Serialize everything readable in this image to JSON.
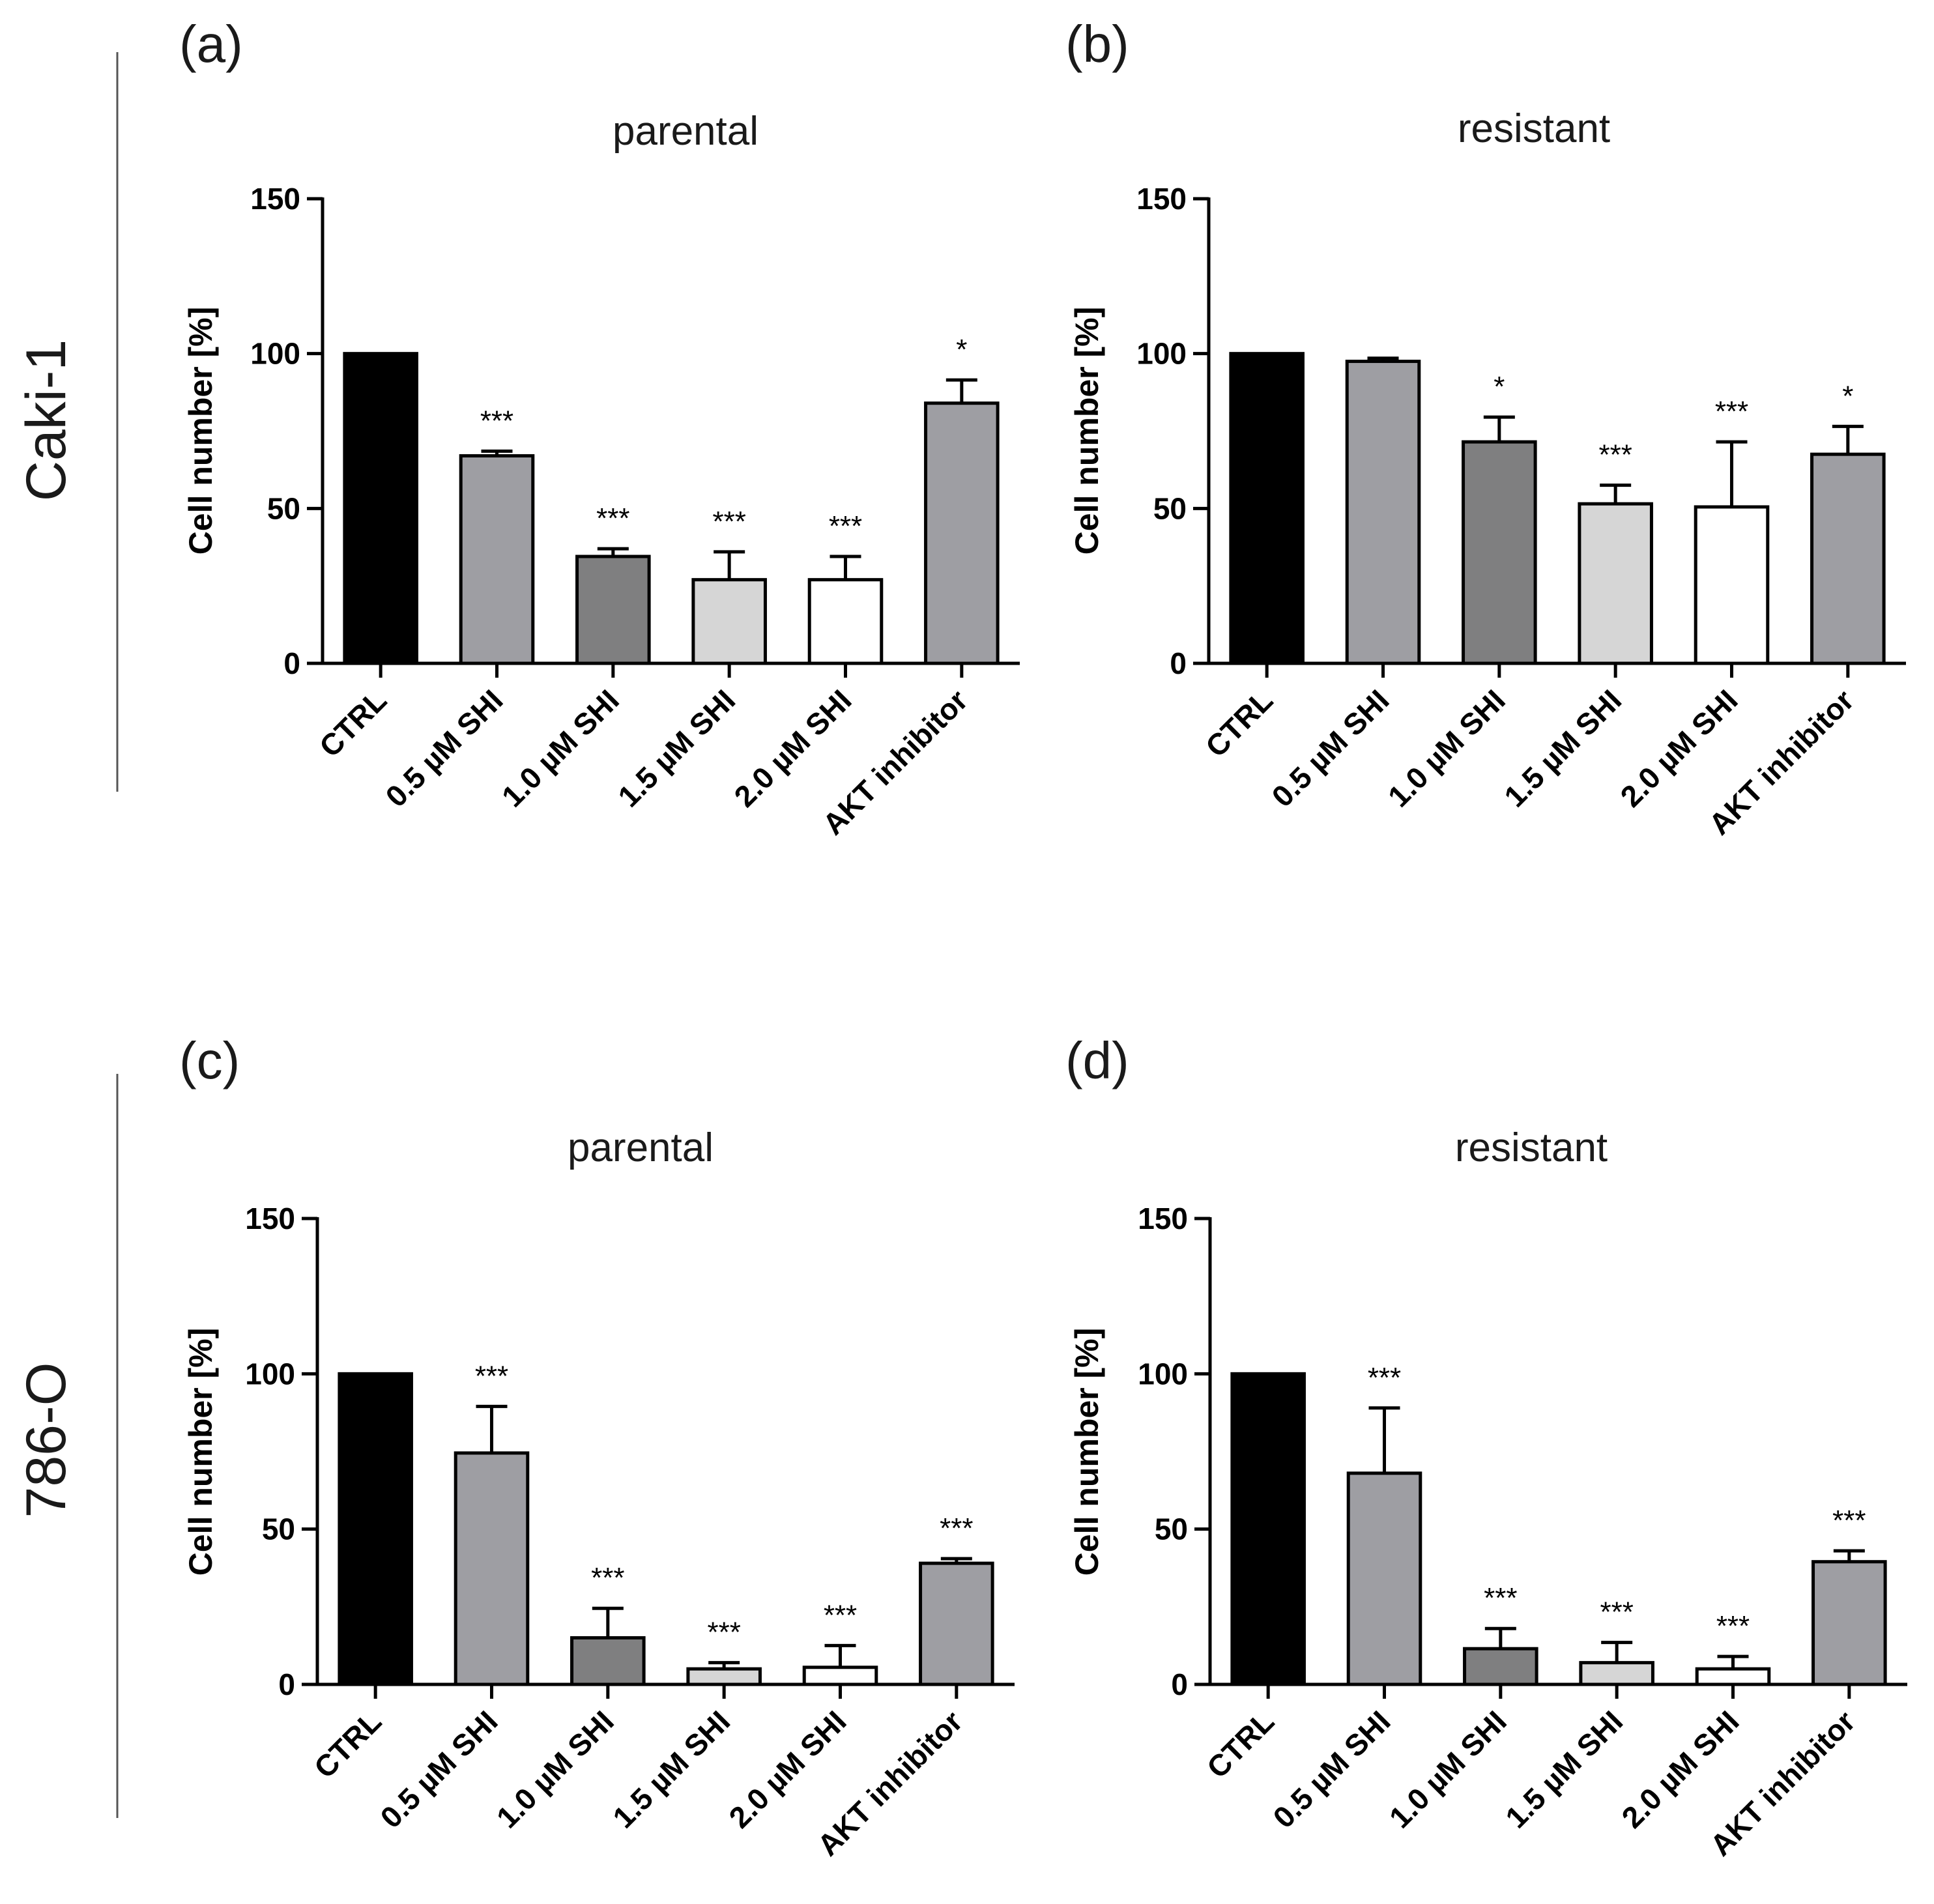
{
  "figure": {
    "row_labels": [
      "Caki-1",
      "786-O"
    ],
    "colors": {
      "CTRL": "#000000",
      "0.5 µM SHI": "#9e9ea3",
      "1.0 µM SHI": "#7f7f80",
      "1.5 µM SHI": "#d6d6d6",
      "2.0 µM SHI": "#ffffff",
      "AKT inhibitor": "#9e9ea3",
      "outline": "#000000"
    }
  },
  "chart_data": [
    {
      "type": "bar",
      "panel": "(a)",
      "title": "parental",
      "row": "Caki-1",
      "ylabel": "Cell number [%]",
      "ylim": [
        0,
        150
      ],
      "yticks": [
        0,
        50,
        100,
        150
      ],
      "categories": [
        "CTRL",
        "0.5 µM SHI",
        "1.0 µM SHI",
        "1.5 µM SHI",
        "2.0 µM SHI",
        "AKT inhibitor"
      ],
      "values": [
        100,
        67,
        34.5,
        27,
        27,
        84
      ],
      "errors": [
        0,
        1.5,
        2.5,
        9,
        7.5,
        7.5
      ],
      "significance": [
        "",
        "***",
        "***",
        "***",
        "***",
        "*"
      ]
    },
    {
      "type": "bar",
      "panel": "(b)",
      "title": "resistant",
      "row": "Caki-1",
      "ylabel": "Cell number [%]",
      "ylim": [
        0,
        150
      ],
      "yticks": [
        0,
        50,
        100,
        150
      ],
      "categories": [
        "CTRL",
        "0.5 µM SHI",
        "1.0 µM SHI",
        "1.5 µM SHI",
        "2.0 µM SHI",
        "AKT inhibitor"
      ],
      "values": [
        100,
        97.5,
        71.5,
        51.5,
        50.5,
        67.5
      ],
      "errors": [
        0,
        1,
        8,
        6,
        21,
        9
      ],
      "significance": [
        "",
        "",
        "*",
        "***",
        "***",
        "*"
      ]
    },
    {
      "type": "bar",
      "panel": "(c)",
      "title": "parental",
      "row": "786-O",
      "ylabel": "Cell number [%]",
      "ylim": [
        0,
        150
      ],
      "yticks": [
        0,
        50,
        100,
        150
      ],
      "categories": [
        "CTRL",
        "0.5 µM SHI",
        "1.0 µM SHI",
        "1.5 µM SHI",
        "2.0 µM SHI",
        "AKT inhibitor"
      ],
      "values": [
        100,
        74.5,
        15,
        5,
        5.5,
        39
      ],
      "errors": [
        0,
        15,
        9.5,
        2,
        7,
        1.5
      ],
      "significance": [
        "",
        "***",
        "***",
        "***",
        "***",
        "***"
      ]
    },
    {
      "type": "bar",
      "panel": "(d)",
      "title": "resistant",
      "row": "786-O",
      "ylabel": "Cell number [%]",
      "ylim": [
        0,
        150
      ],
      "yticks": [
        0,
        50,
        100,
        150
      ],
      "categories": [
        "CTRL",
        "0.5 µM SHI",
        "1.0 µM SHI",
        "1.5 µM SHI",
        "2.0 µM SHI",
        "AKT inhibitor"
      ],
      "values": [
        100,
        68,
        11.5,
        7,
        5,
        39.5
      ],
      "errors": [
        0,
        21,
        6.5,
        6.5,
        4,
        3.5
      ],
      "significance": [
        "",
        "***",
        "***",
        "***",
        "***",
        "***"
      ]
    }
  ]
}
